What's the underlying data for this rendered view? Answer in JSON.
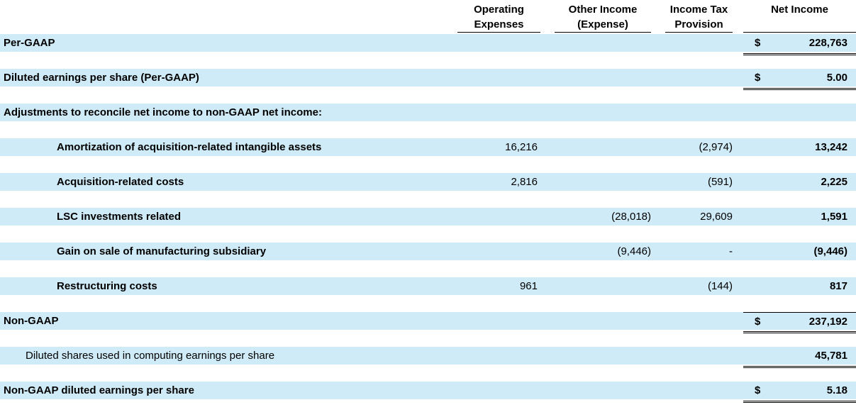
{
  "table": {
    "title_semantic": "GAAP to non-GAAP net income reconciliation",
    "colors": {
      "row_fill": "#d0ebf8",
      "text": "#000000",
      "rule_line": "#000000"
    },
    "columns": [
      {
        "line1": "Operating",
        "line2": "Expenses"
      },
      {
        "line1": "Other Income",
        "line2": "(Expense)"
      },
      {
        "line1": "Income Tax",
        "line2": "Provision"
      },
      {
        "line1": "",
        "line2": "Net Income"
      }
    ],
    "rows": [
      {
        "label": "Per-GAAP",
        "currency": "$",
        "net": "228,763"
      },
      {
        "label": "Diluted earnings per share (Per-GAAP)",
        "currency": "$",
        "net": "5.00"
      },
      {
        "label": "Adjustments to reconcile net income to non-GAAP net income:"
      },
      {
        "label": "Amortization of acquisition-related intangible assets",
        "opex": "16,216",
        "tax": "(2,974)",
        "net": "13,242"
      },
      {
        "label": "Acquisition-related costs",
        "opex": "2,816",
        "tax": "(591)",
        "net": "2,225"
      },
      {
        "label": "LSC investments related",
        "oi": "(28,018)",
        "tax": "29,609",
        "net": "1,591"
      },
      {
        "label": "Gain on sale of manufacturing subsidiary",
        "oi": "(9,446)",
        "tax": "-",
        "net": "(9,446)"
      },
      {
        "label": "Restructuring costs",
        "opex": "961",
        "tax": "(144)",
        "net": "817"
      },
      {
        "label": "Non-GAAP",
        "currency": "$",
        "net": "237,192"
      },
      {
        "label": "Diluted shares used in computing earnings per share",
        "net": "45,781"
      },
      {
        "label": "Non-GAAP diluted earnings per share",
        "currency": "$",
        "net": "5.18"
      }
    ]
  }
}
